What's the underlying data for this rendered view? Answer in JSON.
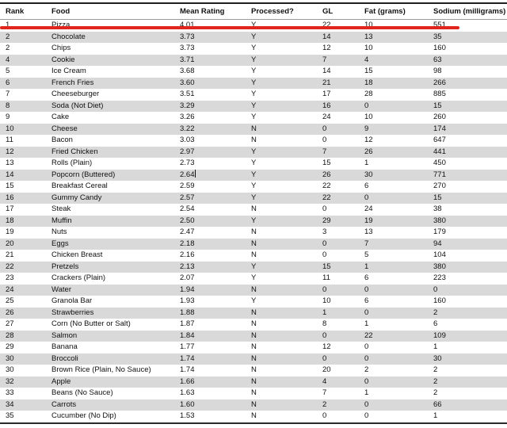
{
  "table": {
    "columns": [
      {
        "key": "rank",
        "label": "Rank"
      },
      {
        "key": "food",
        "label": "Food"
      },
      {
        "key": "mean_rating",
        "label": "Mean Rating"
      },
      {
        "key": "processed",
        "label": "Processed?"
      },
      {
        "key": "gl",
        "label": "GL"
      },
      {
        "key": "fat",
        "label": "Fat (grams)"
      },
      {
        "key": "sodium",
        "label": "Sodium (milligrams)"
      }
    ],
    "rows": [
      {
        "rank": "1",
        "food": "Pizza",
        "mean_rating": "4.01",
        "processed": "Y",
        "gl": "22",
        "fat": "10",
        "sodium": "551"
      },
      {
        "rank": "2",
        "food": "Chocolate",
        "mean_rating": "3.73",
        "processed": "Y",
        "gl": "14",
        "fat": "13",
        "sodium": "35"
      },
      {
        "rank": "2",
        "food": "Chips",
        "mean_rating": "3.73",
        "processed": "Y",
        "gl": "12",
        "fat": "10",
        "sodium": "160"
      },
      {
        "rank": "4",
        "food": "Cookie",
        "mean_rating": "3.71",
        "processed": "Y",
        "gl": "7",
        "fat": "4",
        "sodium": "63"
      },
      {
        "rank": "5",
        "food": "Ice Cream",
        "mean_rating": "3.68",
        "processed": "Y",
        "gl": "14",
        "fat": "15",
        "sodium": "98"
      },
      {
        "rank": "6",
        "food": "French Fries",
        "mean_rating": "3.60",
        "processed": "Y",
        "gl": "21",
        "fat": "18",
        "sodium": "266"
      },
      {
        "rank": "7",
        "food": "Cheeseburger",
        "mean_rating": "3.51",
        "processed": "Y",
        "gl": "17",
        "fat": "28",
        "sodium": "885"
      },
      {
        "rank": "8",
        "food": "Soda (Not Diet)",
        "mean_rating": "3.29",
        "processed": "Y",
        "gl": "16",
        "fat": "0",
        "sodium": "15"
      },
      {
        "rank": "9",
        "food": "Cake",
        "mean_rating": "3.26",
        "processed": "Y",
        "gl": "24",
        "fat": "10",
        "sodium": "260"
      },
      {
        "rank": "10",
        "food": "Cheese",
        "mean_rating": "3.22",
        "processed": "N",
        "gl": "0",
        "fat": "9",
        "sodium": "174"
      },
      {
        "rank": "11",
        "food": "Bacon",
        "mean_rating": "3.03",
        "processed": "N",
        "gl": "0",
        "fat": "12",
        "sodium": "647"
      },
      {
        "rank": "12",
        "food": "Fried Chicken",
        "mean_rating": "2.97",
        "processed": "Y",
        "gl": "7",
        "fat": "26",
        "sodium": "441"
      },
      {
        "rank": "13",
        "food": "Rolls (Plain)",
        "mean_rating": "2.73",
        "processed": "Y",
        "gl": "15",
        "fat": "1",
        "sodium": "450"
      },
      {
        "rank": "14",
        "food": "Popcorn (Buttered)",
        "mean_rating": "2.64",
        "processed": "Y",
        "gl": "26",
        "fat": "30",
        "sodium": "771",
        "text_cursor": true
      },
      {
        "rank": "15",
        "food": "Breakfast Cereal",
        "mean_rating": "2.59",
        "processed": "Y",
        "gl": "22",
        "fat": "6",
        "sodium": "270"
      },
      {
        "rank": "16",
        "food": "Gummy Candy",
        "mean_rating": "2.57",
        "processed": "Y",
        "gl": "22",
        "fat": "0",
        "sodium": "15"
      },
      {
        "rank": "17",
        "food": "Steak",
        "mean_rating": "2.54",
        "processed": "N",
        "gl": "0",
        "fat": "24",
        "sodium": "38"
      },
      {
        "rank": "18",
        "food": "Muffin",
        "mean_rating": "2.50",
        "processed": "Y",
        "gl": "29",
        "fat": "19",
        "sodium": "380"
      },
      {
        "rank": "19",
        "food": "Nuts",
        "mean_rating": "2.47",
        "processed": "N",
        "gl": "3",
        "fat": "13",
        "sodium": "179"
      },
      {
        "rank": "20",
        "food": "Eggs",
        "mean_rating": "2.18",
        "processed": "N",
        "gl": "0",
        "fat": "7",
        "sodium": "94"
      },
      {
        "rank": "21",
        "food": "Chicken Breast",
        "mean_rating": "2.16",
        "processed": "N",
        "gl": "0",
        "fat": "5",
        "sodium": "104"
      },
      {
        "rank": "22",
        "food": "Pretzels",
        "mean_rating": "2.13",
        "processed": "Y",
        "gl": "15",
        "fat": "1",
        "sodium": "380"
      },
      {
        "rank": "23",
        "food": "Crackers (Plain)",
        "mean_rating": "2.07",
        "processed": "Y",
        "gl": "11",
        "fat": "6",
        "sodium": "223"
      },
      {
        "rank": "24",
        "food": "Water",
        "mean_rating": "1.94",
        "processed": "N",
        "gl": "0",
        "fat": "0",
        "sodium": "0"
      },
      {
        "rank": "25",
        "food": "Granola Bar",
        "mean_rating": "1.93",
        "processed": "Y",
        "gl": "10",
        "fat": "6",
        "sodium": "160"
      },
      {
        "rank": "26",
        "food": "Strawberries",
        "mean_rating": "1.88",
        "processed": "N",
        "gl": "1",
        "fat": "0",
        "sodium": "2"
      },
      {
        "rank": "27",
        "food": "Corn (No Butter or Salt)",
        "mean_rating": "1.87",
        "processed": "N",
        "gl": "8",
        "fat": "1",
        "sodium": "6"
      },
      {
        "rank": "28",
        "food": "Salmon",
        "mean_rating": "1.84",
        "processed": "N",
        "gl": "0",
        "fat": "22",
        "sodium": "109"
      },
      {
        "rank": "29",
        "food": "Banana",
        "mean_rating": "1.77",
        "processed": "N",
        "gl": "12",
        "fat": "0",
        "sodium": "1"
      },
      {
        "rank": "30",
        "food": "Broccoli",
        "mean_rating": "1.74",
        "processed": "N",
        "gl": "0",
        "fat": "0",
        "sodium": "30"
      },
      {
        "rank": "30",
        "food": "Brown Rice (Plain, No Sauce)",
        "mean_rating": "1.74",
        "processed": "N",
        "gl": "20",
        "fat": "2",
        "sodium": "2"
      },
      {
        "rank": "32",
        "food": "Apple",
        "mean_rating": "1.66",
        "processed": "N",
        "gl": "4",
        "fat": "0",
        "sodium": "2"
      },
      {
        "rank": "33",
        "food": "Beans (No Sauce)",
        "mean_rating": "1.63",
        "processed": "N",
        "gl": "7",
        "fat": "1",
        "sodium": "2"
      },
      {
        "rank": "34",
        "food": "Carrots",
        "mean_rating": "1.60",
        "processed": "N",
        "gl": "2",
        "fat": "0",
        "sodium": "66"
      },
      {
        "rank": "35",
        "food": "Cucumber (No Dip)",
        "mean_rating": "1.53",
        "processed": "N",
        "gl": "0",
        "fat": "0",
        "sodium": "1"
      }
    ]
  },
  "annotation": {
    "type": "red-underline",
    "highlighted_food": "Pizza",
    "highlighted_row_index": 0,
    "color": "#e0251c"
  },
  "colors": {
    "row_stripe": "#d9d9d9",
    "border_dark": "#1f1f1f",
    "header_rule": "#9a9a9a",
    "text": "#111111"
  }
}
